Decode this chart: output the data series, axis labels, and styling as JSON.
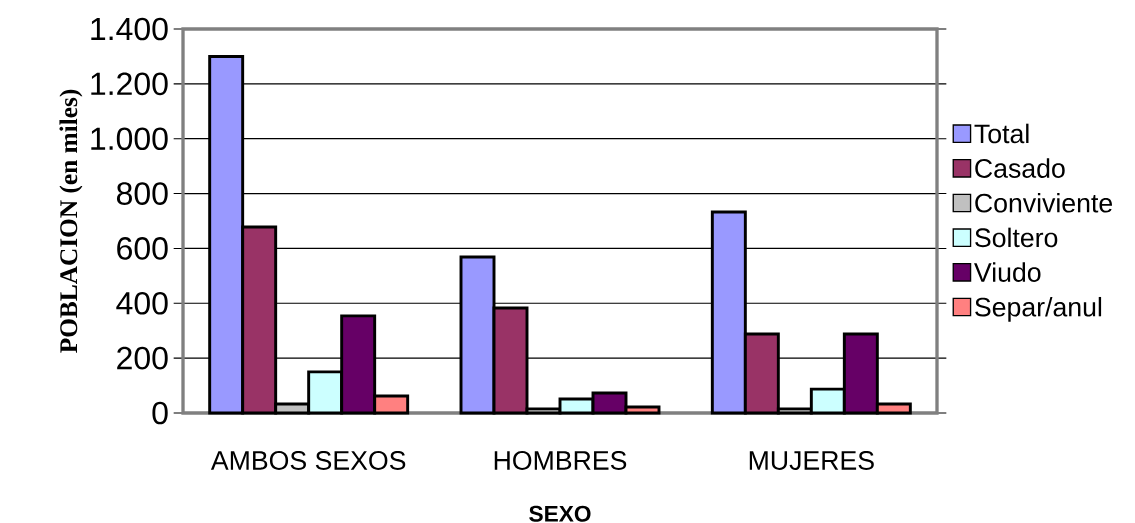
{
  "chart_data": {
    "type": "bar",
    "xlabel": "SEXO",
    "ylabel": "POBLACION (en miles)",
    "categories": [
      "AMBOS SEXOS",
      "HOMBRES",
      "MUJERES"
    ],
    "series": [
      {
        "name": "Total",
        "color": "#9999ff",
        "values": [
          1300,
          569,
          733
        ]
      },
      {
        "name": "Casado",
        "color": "#993366",
        "values": [
          678,
          383,
          288
        ]
      },
      {
        "name": "Conviviente",
        "color": "#c0c0c0",
        "values": [
          33,
          15,
          15
        ]
      },
      {
        "name": "Soltero",
        "color": "#ccffff",
        "values": [
          150,
          51,
          87
        ]
      },
      {
        "name": "Viudo",
        "color": "#660066",
        "values": [
          354,
          73,
          288
        ]
      },
      {
        "name": "Separ/anul",
        "color": "#ff8080",
        "values": [
          62,
          22,
          33
        ]
      }
    ],
    "ylim": [
      0,
      1400
    ],
    "yticks": [
      0,
      200,
      400,
      600,
      800,
      {
        "value": 1000,
        "label": "1.000"
      },
      {
        "value": 1200,
        "label": "1.200"
      },
      {
        "value": 1400,
        "label": "1.400"
      }
    ],
    "grid": "y",
    "legend": "right"
  }
}
